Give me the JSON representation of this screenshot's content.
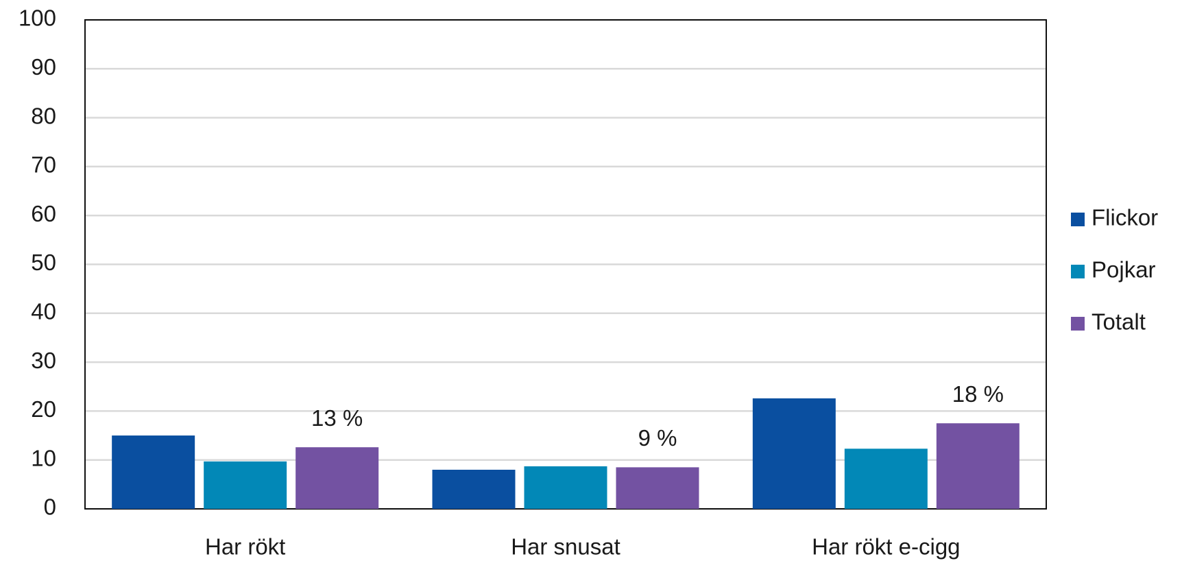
{
  "chart_data": {
    "type": "bar",
    "categories": [
      "Har rökt",
      "Har snusat",
      "Har rökt e-cigg"
    ],
    "series": [
      {
        "name": "Flickor",
        "color": "#0a4fa0",
        "values": [
          15,
          8,
          22.6
        ]
      },
      {
        "name": "Pojkar",
        "color": "#0288b7",
        "values": [
          9.7,
          8.7,
          12.3
        ]
      },
      {
        "name": "Totalt",
        "color": "#7352a2",
        "values": [
          12.6,
          8.5,
          17.5
        ],
        "value_labels": [
          "13 %",
          "9 %",
          "18 %"
        ]
      }
    ],
    "ylim": [
      0,
      100
    ],
    "yticks": [
      0,
      10,
      20,
      30,
      40,
      50,
      60,
      70,
      80,
      90,
      100
    ],
    "grid": true,
    "legend": "right"
  }
}
